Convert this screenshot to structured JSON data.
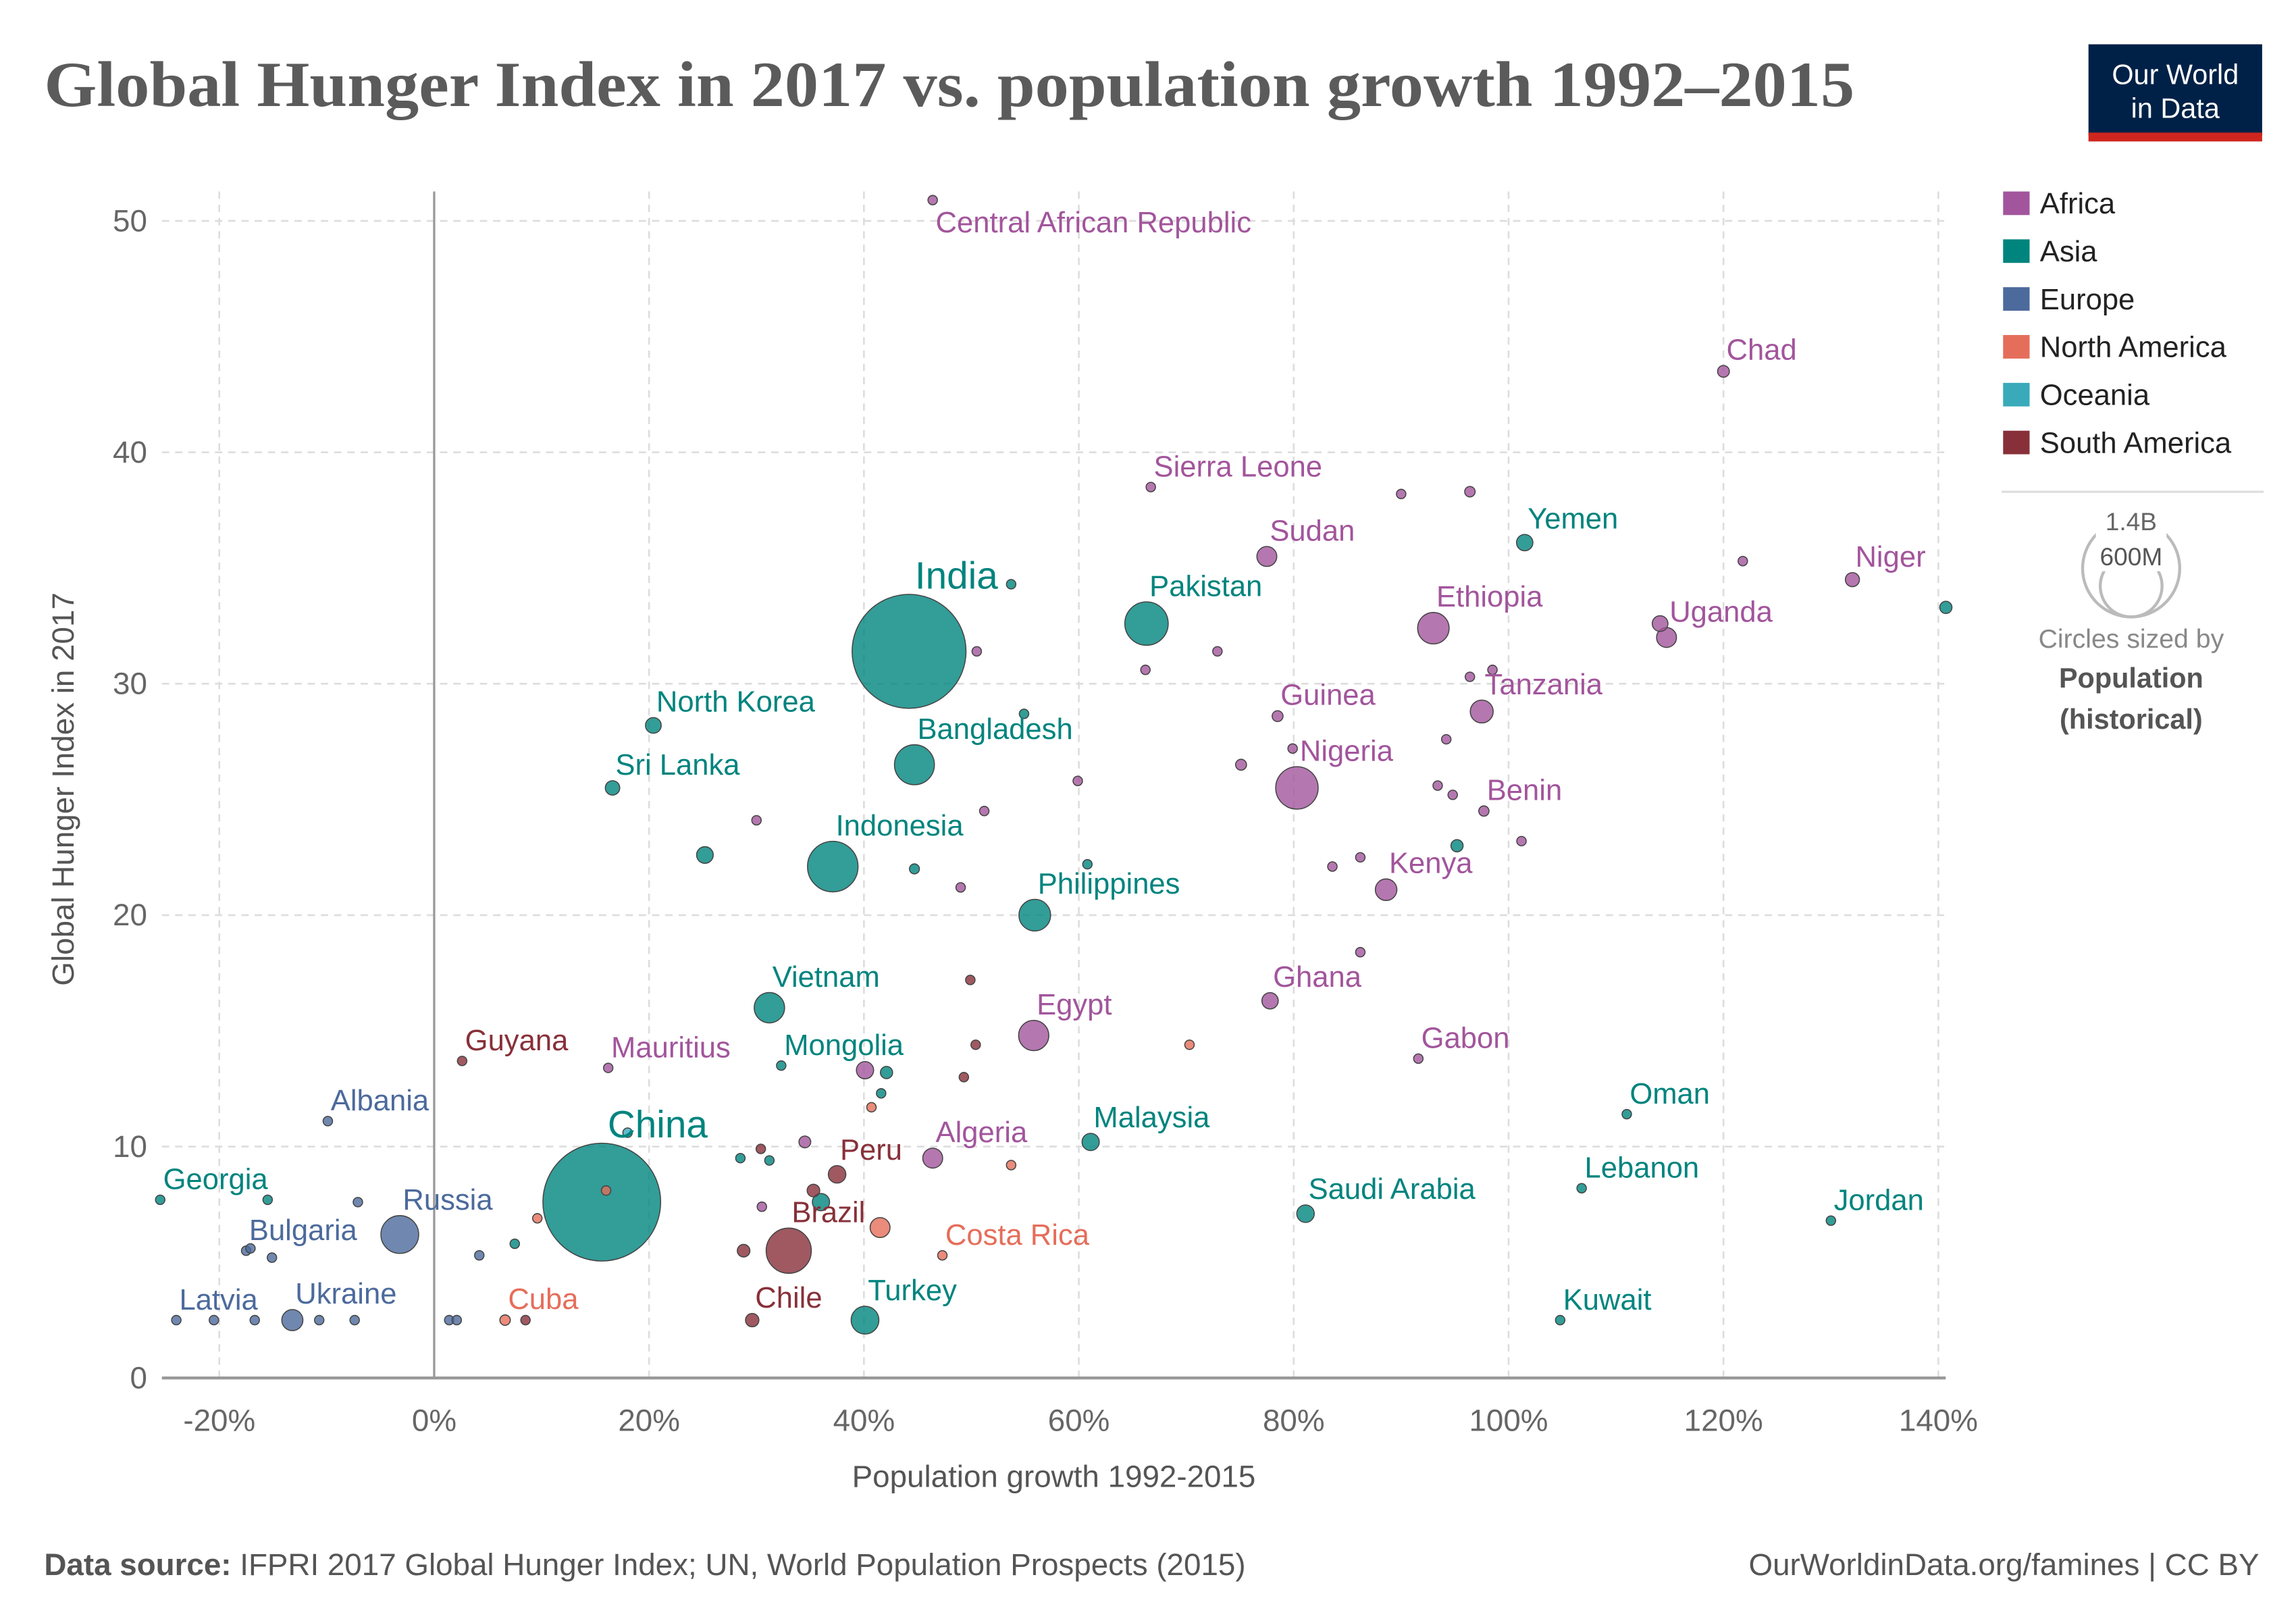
{
  "logo": {
    "line1": "Our World",
    "line2": "in Data",
    "bg": "#002147",
    "accent": "#ce261e"
  },
  "footer": {
    "source_label": "Data source:",
    "source_text": "IFPRI 2017 Global Hunger Index; UN, World Population Prospects (2015)",
    "right": "OurWorldinData.org/famines | CC BY"
  },
  "size_legend": {
    "big": "1.4B",
    "small": "600M",
    "line1": "Circles sized by",
    "line2": "Population",
    "line3": "(historical)"
  },
  "chart_data": {
    "type": "scatter",
    "title": "Global Hunger Index in 2017 vs. population growth 1992–2015",
    "xlabel": "Population growth 1992-2015",
    "ylabel": "Global Hunger Index in 2017",
    "xlim": [
      -25,
      142
    ],
    "ylim": [
      0,
      52
    ],
    "x_ticks": [
      -20,
      0,
      20,
      40,
      60,
      80,
      100,
      120,
      140
    ],
    "x_tick_labels": [
      "-20%",
      "0%",
      "20%",
      "40%",
      "60%",
      "80%",
      "100%",
      "120%",
      "140%"
    ],
    "y_ticks": [
      0,
      10,
      20,
      30,
      40,
      50
    ],
    "y_tick_labels": [
      "0",
      "10",
      "20",
      "30",
      "40",
      "50"
    ],
    "grid": true,
    "legend_placement": "right",
    "regions": [
      {
        "name": "Africa",
        "color": "#a2559c"
      },
      {
        "name": "Asia",
        "color": "#00847e"
      },
      {
        "name": "Europe",
        "color": "#4c6a9c"
      },
      {
        "name": "North America",
        "color": "#e56e5a"
      },
      {
        "name": "Oceania",
        "color": "#38aaba"
      },
      {
        "name": "South America",
        "color": "#883039"
      }
    ],
    "points": [
      {
        "label": "Central African Republic",
        "region": "Africa",
        "x": 46.4,
        "y": 50.9,
        "pop": 4.6
      },
      {
        "label": "Chad",
        "region": "Africa",
        "x": 120,
        "y": 43.5,
        "pop": 14
      },
      {
        "label": "Sierra Leone",
        "region": "Africa",
        "x": 66.7,
        "y": 38.5,
        "pop": 7
      },
      {
        "label": "Sudan",
        "region": "Africa",
        "x": 77.5,
        "y": 35.5,
        "pop": 40
      },
      {
        "label": "Yemen",
        "region": "Asia",
        "x": 101.5,
        "y": 36.1,
        "pop": 27
      },
      {
        "label": "Niger",
        "region": "Africa",
        "x": 132,
        "y": 34.5,
        "pop": 20
      },
      {
        "label": "India",
        "region": "Asia",
        "x": 44.2,
        "y": 31.4,
        "pop": 1310
      },
      {
        "label": "Pakistan",
        "region": "Asia",
        "x": 66.3,
        "y": 32.6,
        "pop": 190
      },
      {
        "label": "Ethiopia",
        "region": "Africa",
        "x": 93,
        "y": 32.4,
        "pop": 100
      },
      {
        "label": "Uganda",
        "region": "Africa",
        "x": 114.7,
        "y": 32.0,
        "pop": 40
      },
      {
        "label": "Tanzania",
        "region": "Africa",
        "x": 97.5,
        "y": 28.8,
        "pop": 53
      },
      {
        "label": "Guinea",
        "region": "Africa",
        "x": 78.5,
        "y": 28.6,
        "pop": 12
      },
      {
        "label": "North Korea",
        "region": "Asia",
        "x": 20.4,
        "y": 28.2,
        "pop": 25
      },
      {
        "label": "Bangladesh",
        "region": "Asia",
        "x": 44.7,
        "y": 26.5,
        "pop": 161
      },
      {
        "label": "Nigeria",
        "region": "Africa",
        "x": 80.3,
        "y": 25.5,
        "pop": 182
      },
      {
        "label": "Sri Lanka",
        "region": "Asia",
        "x": 16.6,
        "y": 25.5,
        "pop": 21
      },
      {
        "label": "Benin",
        "region": "Africa",
        "x": 97.7,
        "y": 24.5,
        "pop": 10.6
      },
      {
        "label": "Indonesia",
        "region": "Asia",
        "x": 37.1,
        "y": 22.1,
        "pop": 258
      },
      {
        "label": "Kenya",
        "region": "Africa",
        "x": 88.6,
        "y": 21.1,
        "pop": 47
      },
      {
        "label": "Philippines",
        "region": "Asia",
        "x": 55.9,
        "y": 20.0,
        "pop": 101
      },
      {
        "label": "Ghana",
        "region": "Africa",
        "x": 77.8,
        "y": 16.3,
        "pop": 27
      },
      {
        "label": "Vietnam",
        "region": "Asia",
        "x": 31.2,
        "y": 16.0,
        "pop": 93
      },
      {
        "label": "Egypt",
        "region": "Africa",
        "x": 55.8,
        "y": 14.8,
        "pop": 92
      },
      {
        "label": "Gabon",
        "region": "Africa",
        "x": 91.6,
        "y": 13.8,
        "pop": 1.9
      },
      {
        "label": "Guyana",
        "region": "South America",
        "x": 2.6,
        "y": 13.7,
        "pop": 0.8
      },
      {
        "label": "Mauritius",
        "region": "Africa",
        "x": 16.2,
        "y": 13.4,
        "pop": 1.3
      },
      {
        "label": "Mongolia",
        "region": "Asia",
        "x": 32.3,
        "y": 13.5,
        "pop": 3
      },
      {
        "label": "Oman",
        "region": "Asia",
        "x": 111,
        "y": 11.4,
        "pop": 4.2
      },
      {
        "label": "Albania",
        "region": "Europe",
        "x": -9.9,
        "y": 11.1,
        "pop": 2.9
      },
      {
        "label": "Malaysia",
        "region": "Asia",
        "x": 61.1,
        "y": 10.2,
        "pop": 30
      },
      {
        "label": "China",
        "region": "Asia",
        "x": 15.6,
        "y": 7.6,
        "pop": 1400
      },
      {
        "label": "Peru",
        "region": "South America",
        "x": 37.5,
        "y": 8.8,
        "pop": 31
      },
      {
        "label": "Algeria",
        "region": "Africa",
        "x": 46.4,
        "y": 9.5,
        "pop": 40
      },
      {
        "label": "Georgia",
        "region": "Asia",
        "x": -25.5,
        "y": 7.7,
        "pop": 4
      },
      {
        "label": "Lebanon",
        "region": "Asia",
        "x": 106.8,
        "y": 8.2,
        "pop": 5.9
      },
      {
        "label": "Saudi Arabia",
        "region": "Asia",
        "x": 81.1,
        "y": 7.1,
        "pop": 31
      },
      {
        "label": "Jordan",
        "region": "Asia",
        "x": 130,
        "y": 6.8,
        "pop": 9
      },
      {
        "label": "Russia",
        "region": "Europe",
        "x": -3.2,
        "y": 6.2,
        "pop": 144
      },
      {
        "label": "Bulgaria",
        "region": "Europe",
        "x": -17.5,
        "y": 5.5,
        "pop": 7.2
      },
      {
        "label": "Brazil",
        "region": "South America",
        "x": 33,
        "y": 5.5,
        "pop": 206
      },
      {
        "label": "Costa Rica",
        "region": "North America",
        "x": 47.3,
        "y": 5.3,
        "pop": 4.8
      },
      {
        "label": "Latvia",
        "region": "Europe",
        "x": -24,
        "y": 2.5,
        "pop": 2
      },
      {
        "label": "Ukraine",
        "region": "Europe",
        "x": -13.2,
        "y": 2.5,
        "pop": 45
      },
      {
        "label": "Cuba",
        "region": "North America",
        "x": 6.6,
        "y": 2.5,
        "pop": 11
      },
      {
        "label": "Chile",
        "region": "South America",
        "x": 29.6,
        "y": 2.5,
        "pop": 18
      },
      {
        "label": "Turkey",
        "region": "Asia",
        "x": 40.1,
        "y": 2.5,
        "pop": 78
      },
      {
        "label": "Kuwait",
        "region": "Asia",
        "x": 104.8,
        "y": 2.5,
        "pop": 3.9
      },
      {
        "region": "Africa",
        "x": 90,
        "y": 38.2,
        "pop": 5
      },
      {
        "region": "Africa",
        "x": 96.4,
        "y": 38.3,
        "pop": 11
      },
      {
        "region": "Africa",
        "x": 121.8,
        "y": 35.3,
        "pop": 4
      },
      {
        "region": "Africa",
        "x": 114.1,
        "y": 32.6,
        "pop": 25
      },
      {
        "region": "Africa",
        "x": 50.5,
        "y": 31.4,
        "pop": 5
      },
      {
        "region": "Africa",
        "x": 72.9,
        "y": 31.4,
        "pop": 5
      },
      {
        "region": "Africa",
        "x": 66.2,
        "y": 30.6,
        "pop": 5
      },
      {
        "region": "Africa",
        "x": 98.5,
        "y": 30.6,
        "pop": 5
      },
      {
        "region": "Africa",
        "x": 96.4,
        "y": 30.3,
        "pop": 5
      },
      {
        "region": "Africa",
        "x": 79.9,
        "y": 27.2,
        "pop": 4
      },
      {
        "region": "Africa",
        "x": 94.2,
        "y": 27.6,
        "pop": 8
      },
      {
        "region": "Africa",
        "x": 75.1,
        "y": 26.5,
        "pop": 12
      },
      {
        "region": "Africa",
        "x": 59.9,
        "y": 25.8,
        "pop": 5
      },
      {
        "region": "Africa",
        "x": 93.4,
        "y": 25.6,
        "pop": 5
      },
      {
        "region": "Africa",
        "x": 94.8,
        "y": 25.2,
        "pop": 5
      },
      {
        "region": "Africa",
        "x": 51.2,
        "y": 24.5,
        "pop": 5
      },
      {
        "region": "Africa",
        "x": 30,
        "y": 24.1,
        "pop": 5
      },
      {
        "region": "Africa",
        "x": 101.2,
        "y": 23.2,
        "pop": 5
      },
      {
        "region": "Africa",
        "x": 83.6,
        "y": 22.1,
        "pop": 8
      },
      {
        "region": "Africa",
        "x": 86.2,
        "y": 22.5,
        "pop": 5
      },
      {
        "region": "Africa",
        "x": 49,
        "y": 21.2,
        "pop": 5
      },
      {
        "region": "Africa",
        "x": 86.2,
        "y": 18.4,
        "pop": 5
      },
      {
        "region": "Africa",
        "x": 40.1,
        "y": 13.3,
        "pop": 30
      },
      {
        "region": "Africa",
        "x": 34.5,
        "y": 10.2,
        "pop": 14
      },
      {
        "region": "Africa",
        "x": 30.5,
        "y": 7.4,
        "pop": 5
      },
      {
        "region": "Asia",
        "x": 53.7,
        "y": 34.3,
        "pop": 5
      },
      {
        "region": "Asia",
        "x": 54.9,
        "y": 28.7,
        "pop": 5
      },
      {
        "region": "Asia",
        "x": 25.2,
        "y": 22.6,
        "pop": 28
      },
      {
        "region": "Asia",
        "x": 44.7,
        "y": 22.0,
        "pop": 10
      },
      {
        "region": "Asia",
        "x": 60.8,
        "y": 22.2,
        "pop": 4
      },
      {
        "region": "Asia",
        "x": 95.2,
        "y": 23.0,
        "pop": 15
      },
      {
        "region": "Asia",
        "x": 140.7,
        "y": 33.3,
        "pop": 15
      },
      {
        "region": "Asia",
        "x": 42.1,
        "y": 13.2,
        "pop": 15
      },
      {
        "region": "Asia",
        "x": 41.6,
        "y": 12.3,
        "pop": 6
      },
      {
        "region": "Asia",
        "x": 28.5,
        "y": 9.5,
        "pop": 6
      },
      {
        "region": "Asia",
        "x": 31.2,
        "y": 9.4,
        "pop": 6
      },
      {
        "region": "Asia",
        "x": 36,
        "y": 7.6,
        "pop": 30
      },
      {
        "region": "Asia",
        "x": -15.5,
        "y": 7.7,
        "pop": 3
      },
      {
        "region": "Asia",
        "x": 7.5,
        "y": 5.8,
        "pop": 6
      },
      {
        "region": "Europe",
        "x": -7.1,
        "y": 7.6,
        "pop": 3.5
      },
      {
        "region": "Europe",
        "x": -15.1,
        "y": 5.2,
        "pop": 4
      },
      {
        "region": "Europe",
        "x": -17.1,
        "y": 5.6,
        "pop": 4
      },
      {
        "region": "Europe",
        "x": 4.2,
        "y": 5.3,
        "pop": 4
      },
      {
        "region": "Europe",
        "x": -20.5,
        "y": 2.5,
        "pop": 3
      },
      {
        "region": "Europe",
        "x": -16.7,
        "y": 2.5,
        "pop": 3
      },
      {
        "region": "Europe",
        "x": -10.7,
        "y": 2.5,
        "pop": 3
      },
      {
        "region": "Europe",
        "x": -7.4,
        "y": 2.5,
        "pop": 3
      },
      {
        "region": "Europe",
        "x": 1.4,
        "y": 2.5,
        "pop": 4
      },
      {
        "region": "Europe",
        "x": 2.1,
        "y": 2.5,
        "pop": 4
      },
      {
        "region": "North America",
        "x": 9.6,
        "y": 6.9,
        "pop": 4
      },
      {
        "region": "North America",
        "x": 40.7,
        "y": 11.7,
        "pop": 5
      },
      {
        "region": "North America",
        "x": 53.7,
        "y": 9.2,
        "pop": 5
      },
      {
        "region": "North America",
        "x": 70.3,
        "y": 14.4,
        "pop": 5
      },
      {
        "region": "North America",
        "x": 16,
        "y": 8.1,
        "pop": 3
      },
      {
        "region": "North America",
        "x": 41.5,
        "y": 6.5,
        "pop": 40
      },
      {
        "region": "South America",
        "x": 49.9,
        "y": 17.2,
        "pop": 4
      },
      {
        "region": "South America",
        "x": 50.4,
        "y": 14.4,
        "pop": 5
      },
      {
        "region": "South America",
        "x": 49.3,
        "y": 13.0,
        "pop": 8
      },
      {
        "region": "South America",
        "x": 30.4,
        "y": 9.9,
        "pop": 5
      },
      {
        "region": "South America",
        "x": 35.3,
        "y": 8.1,
        "pop": 16
      },
      {
        "region": "South America",
        "x": 28.8,
        "y": 5.5,
        "pop": 16
      },
      {
        "region": "South America",
        "x": 8.5,
        "y": 2.5,
        "pop": 4
      },
      {
        "region": "Oceania",
        "x": 18,
        "y": 10.6,
        "pop": 3
      }
    ]
  }
}
